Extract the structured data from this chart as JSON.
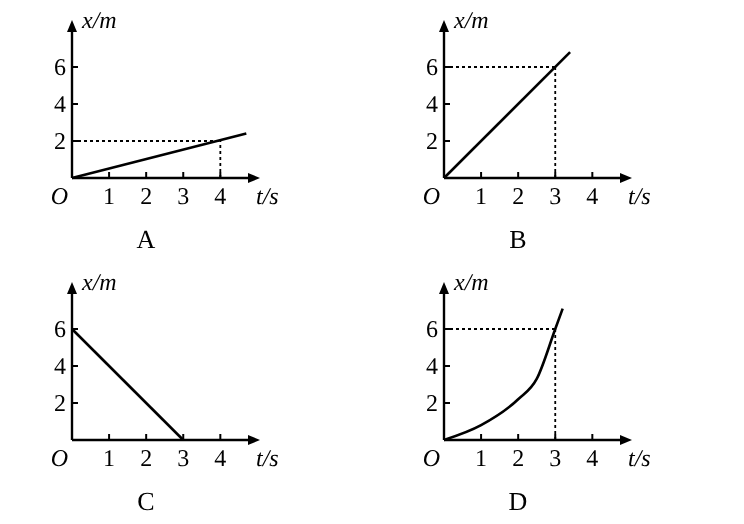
{
  "chart_data": [
    {
      "type": "line",
      "title": "A",
      "xlabel": "t/s",
      "ylabel": "x/m",
      "annotations": [
        "O"
      ],
      "xlim": [
        0,
        4.8
      ],
      "ylim": [
        0,
        8
      ],
      "xticks": [
        1,
        2,
        3,
        4
      ],
      "yticks": [
        2,
        4,
        6
      ],
      "x": [
        0,
        4.7
      ],
      "series": [
        {
          "color": "#000000",
          "values": [
            0,
            2.4
          ]
        }
      ],
      "ref_lines": [
        {
          "axis": "y",
          "value": 2,
          "line_style": "dotted"
        },
        {
          "axis": "x",
          "value": 4,
          "line_style": "dotted"
        }
      ]
    },
    {
      "type": "line",
      "title": "B",
      "xlabel": "t/s",
      "ylabel": "x/m",
      "annotations": [
        "O"
      ],
      "xlim": [
        0,
        4.8
      ],
      "ylim": [
        0,
        8
      ],
      "xticks": [
        1,
        2,
        3,
        4
      ],
      "yticks": [
        2,
        4,
        6
      ],
      "x": [
        0,
        3.4
      ],
      "series": [
        {
          "color": "#000000",
          "values": [
            0,
            6.8
          ]
        }
      ],
      "ref_lines": [
        {
          "axis": "y",
          "value": 6,
          "line_style": "dotted"
        },
        {
          "axis": "x",
          "value": 3,
          "line_style": "dotted"
        }
      ]
    },
    {
      "type": "line",
      "title": "C",
      "xlabel": "t/s",
      "ylabel": "x/m",
      "annotations": [
        "O"
      ],
      "xlim": [
        0,
        4.8
      ],
      "ylim": [
        0,
        8
      ],
      "xticks": [
        1,
        2,
        3,
        4
      ],
      "yticks": [
        2,
        4,
        6
      ],
      "x": [
        0,
        3
      ],
      "series": [
        {
          "color": "#000000",
          "values": [
            6,
            0
          ]
        }
      ]
    },
    {
      "type": "line",
      "title": "D",
      "xlabel": "t/s",
      "ylabel": "x/m",
      "annotations": [
        "O"
      ],
      "xlim": [
        0,
        4.8
      ],
      "ylim": [
        0,
        8
      ],
      "xticks": [
        1,
        2,
        3,
        4
      ],
      "yticks": [
        2,
        4,
        6
      ],
      "x": [
        0,
        1,
        2,
        2.5,
        3,
        3.2
      ],
      "series": [
        {
          "color": "#000000",
          "values": [
            0,
            0.8,
            2.2,
            3.3,
            6,
            7.1
          ]
        }
      ],
      "ref_lines": [
        {
          "axis": "y",
          "value": 6,
          "line_style": "dotted"
        },
        {
          "axis": "x",
          "value": 3,
          "line_style": "dotted"
        }
      ]
    }
  ]
}
